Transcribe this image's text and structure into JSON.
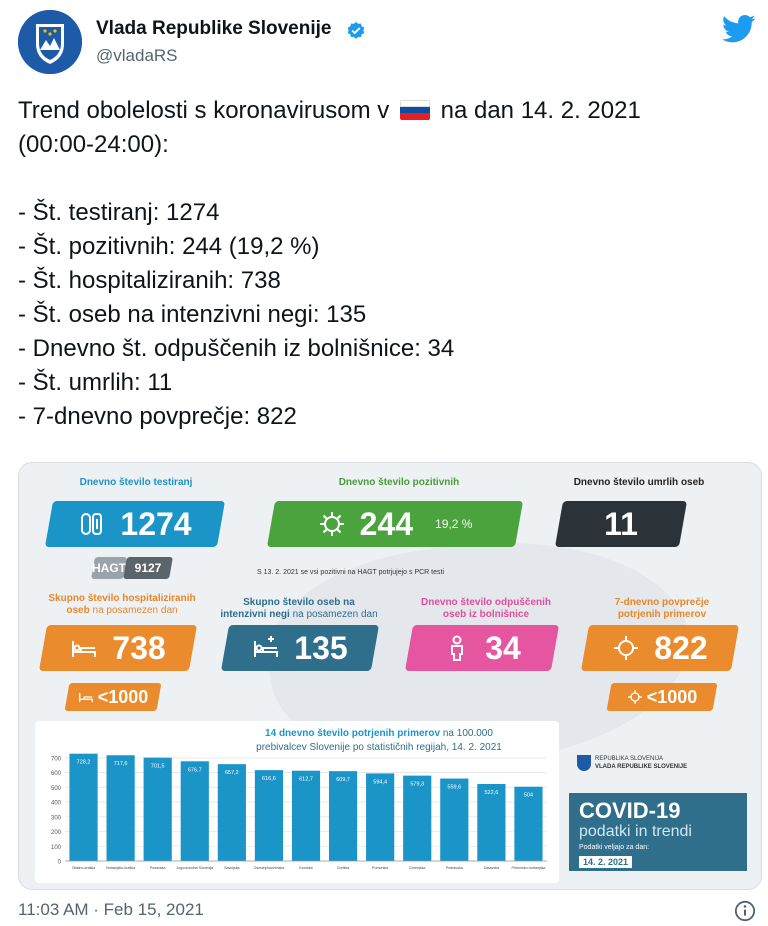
{
  "account": {
    "name": "Vlada Republike Slovenije",
    "handle": "@vladaRS"
  },
  "icons": {
    "avatar": "coat-of-arms-icon",
    "verified": "verified-badge-icon",
    "brand": "twitter-bird-icon",
    "flag": "slovenia-flag-icon",
    "info": "info-icon"
  },
  "colors": {
    "twitter_blue": "#1d9bf0",
    "testing": "#1b95c8",
    "positive": "#4ba33d",
    "deaths": "#2c3338",
    "hospital": "#ea8b2e",
    "icu": "#2f6f8c",
    "discharged": "#e6559f"
  },
  "tweet": {
    "line1_before": "Trend obolelosti s koronavirusom v",
    "line1_after": "na dan 14. 2. 2021",
    "line2": "(00:00-24:00):",
    "bullets": [
      "- Št. testiranj: 1274",
      "- Št. pozitivnih: 244 (19,2 %)",
      "- Št. hospitaliziranih: 738",
      "- Št. oseb na intenzivni negi: 135",
      "- Dnevno št. odpuščenih iz bolnišnice: 34",
      "- Št. umrlih: 11",
      "- 7-dnevno povprečje: 822"
    ]
  },
  "infographic": {
    "testing": {
      "label": "Dnevno število testiranj",
      "value": "1274",
      "hagt_label": "HAGT",
      "hagt_value": "9127"
    },
    "positive": {
      "label": "Dnevno število pozitivnih",
      "value": "244",
      "pct": "19,2 %"
    },
    "deaths": {
      "label": "Dnevno število umrlih oseb",
      "value": "11"
    },
    "note": "S 13. 2. 2021 se vsi pozitivni na HAGT potrjujejo s PCR testi",
    "hospital": {
      "label_bold": "Skupno število hospitaliziranih oseb",
      "label_normal": "na posamezen dan",
      "value": "738",
      "limit": "<1000"
    },
    "icu": {
      "label_bold": "Skupno število oseb na intenzivni negi",
      "label_normal": "na posamezen dan",
      "value": "135"
    },
    "discharged": {
      "label": "Dnevno število odpuščenih oseb iz bolnišnice",
      "value": "34"
    },
    "avg7": {
      "label_bold": "7-dnevno povprečje",
      "label_bold2": "potrjenih primerov",
      "value": "822",
      "limit": "<1000"
    },
    "chart_title_bold": "14 dnevno število potrjenih primerov",
    "chart_title_rest1": "na 100.000",
    "chart_title_rest2": "prebivalcev Slovenije po statističnih regijah, 14. 2. 2021",
    "gov_line1": "REPUBLIKA SLOVENIJA",
    "gov_line2": "VLADA REPUBLIKE SLOVENIJE",
    "covid_title": "COVID-19",
    "covid_sub": "podatki in trendi",
    "covid_valid1": "Podatki veljajo za dan:",
    "covid_date": "14. 2. 2021"
  },
  "chart_data": {
    "type": "bar",
    "categories": [
      "Obalno-kraška",
      "Notranjsko-kraška",
      "Posavska",
      "Jugovzhodna Slovenija",
      "Savinjska",
      "Osrednjeslovenska",
      "Koroška",
      "Goriška",
      "Pomurska",
      "Gorenjska",
      "Podravska",
      "Zasavska",
      "Primorsko-notranjska"
    ],
    "values": [
      728.2,
      717.6,
      701.5,
      676.7,
      657.2,
      616.6,
      612.7,
      609.7,
      594.4,
      579.3,
      559.6,
      522.6,
      504
    ],
    "value_labels": [
      "728,2",
      "717,6",
      "701,5",
      "676,7",
      "657,2",
      "616,6",
      "612,7",
      "609,7",
      "594,4",
      "579,3",
      "559,6",
      "522,6",
      "504"
    ],
    "yticks": [
      0,
      100,
      200,
      300,
      400,
      500,
      600,
      700
    ],
    "ylim": [
      0,
      760
    ],
    "grid": true
  },
  "footer": {
    "timestamp": "11:03 AM · Feb 15, 2021"
  }
}
